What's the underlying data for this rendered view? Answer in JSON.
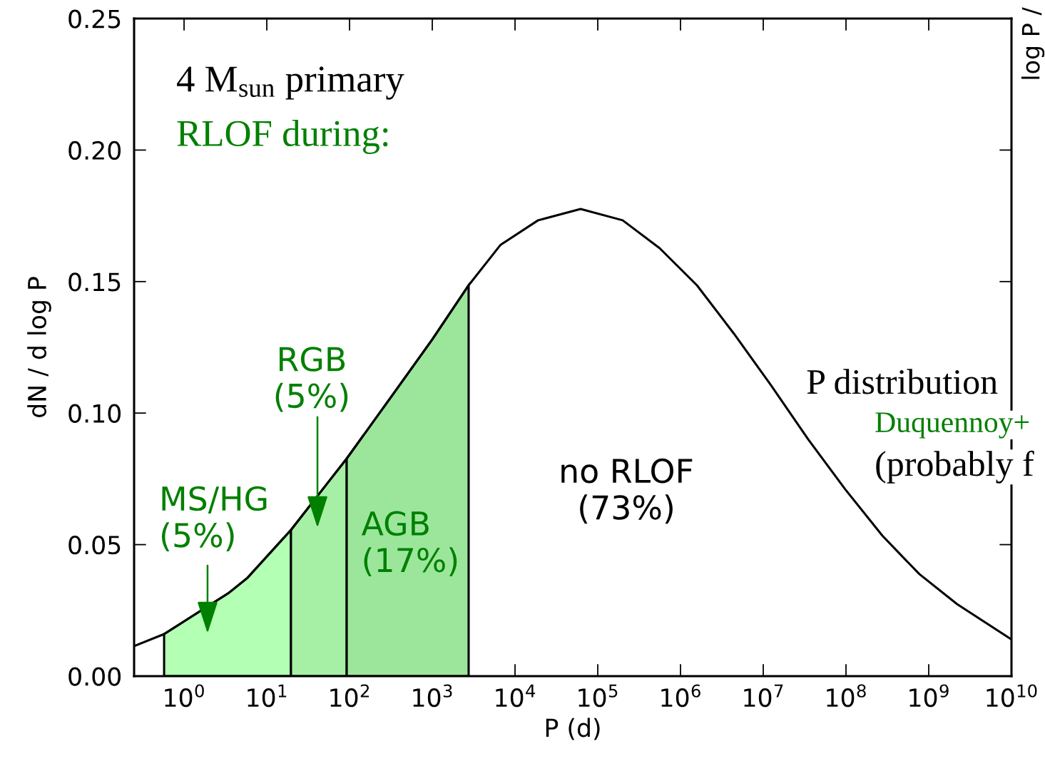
{
  "chart_data": {
    "type": "line",
    "xlabel": "P (d)",
    "ylabel": "dN / d log P",
    "log": "x",
    "xlim": [
      0.249,
      10000000000
    ],
    "ylim": [
      0,
      0.25
    ],
    "xticks": [
      {
        "value": 1,
        "label": "10$^{0}$"
      },
      {
        "value": 10,
        "label": "10$^{1}$"
      },
      {
        "value": 100,
        "label": "10$^{2}$"
      },
      {
        "value": 1000,
        "label": "10$^{3}$"
      },
      {
        "value": 10000,
        "label": "10$^{4}$"
      },
      {
        "value": 100000,
        "label": "10$^{5}$"
      },
      {
        "value": 1000000,
        "label": "10$^{6}$"
      },
      {
        "value": 10000000,
        "label": "10$^{7}$"
      },
      {
        "value": 100000000,
        "label": "10$^{8}$"
      },
      {
        "value": 1000000000,
        "label": "10$^{9}$"
      },
      {
        "value": 10000000000,
        "label": "10$^{10}$"
      }
    ],
    "yticks": [
      {
        "value": 0,
        "label": "0.00"
      },
      {
        "value": 0.05,
        "label": "0.05"
      },
      {
        "value": 0.1,
        "label": "0.10"
      },
      {
        "value": 0.15,
        "label": "0.15"
      },
      {
        "value": 0.2,
        "label": "0.20"
      },
      {
        "value": 0.25,
        "label": "0.25"
      }
    ],
    "grid": false,
    "series": [
      {
        "type": "area",
        "color": "#b3ffb3",
        "x": [
          0.574,
          3.42,
          5.85,
          19.6
        ],
        "values": [
          0.016,
          0.0315,
          0.0374,
          0.0556
        ]
      },
      {
        "type": "area",
        "color": "#a6f0a6",
        "x": [
          19.6,
          60.8,
          92.4
        ],
        "values": [
          0.0556,
          0.0754,
          0.0827
        ]
      },
      {
        "type": "area",
        "color": "#9ce69c",
        "x": [
          92.4,
          329,
          1000,
          2750
        ],
        "values": [
          0.0827,
          0.1068,
          0.128,
          0.1486
        ]
      },
      {
        "color": "#000000",
        "x": [
          0.249,
          0.574,
          3.42,
          5.85,
          19.6,
          60.8,
          92.4,
          329,
          1000,
          2750,
          6700,
          19000,
          62000,
          200000,
          560000,
          1580000,
          4400000,
          12400000,
          35000000,
          98000000,
          275000000,
          770000000,
          2200000000,
          9800000000
        ],
        "values": [
          0.0114,
          0.016,
          0.0315,
          0.0374,
          0.0556,
          0.0754,
          0.0827,
          0.1068,
          0.128,
          0.1486,
          0.164,
          0.1733,
          0.1776,
          0.1733,
          0.1627,
          0.1486,
          0.1303,
          0.1106,
          0.09,
          0.071,
          0.0534,
          0.0388,
          0.0274,
          0.0141
        ]
      }
    ],
    "annotations": [
      "4 M$_{sun}$ primary",
      "RLOF during:",
      "MS/HG\n(5%)",
      "RGB\n(5%)",
      "AGB\n(17%)",
      "no RLOF\n(73%)",
      "P distribution",
      "Duquennoy+",
      "(probably f",
      "log P /"
    ]
  }
}
